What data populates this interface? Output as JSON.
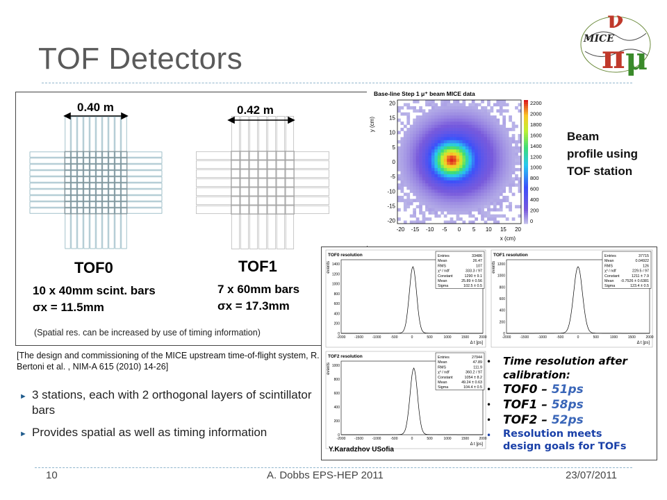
{
  "slide": {
    "title": "TOF Detectors",
    "page_number": "10",
    "footer_center": "A. Dobbs EPS-HEP 2011",
    "footer_right": "23/07/2011"
  },
  "logo": {
    "text": "MICE"
  },
  "diagram": {
    "tof0_width": "0.40 m",
    "tof1_width": "0.42 m",
    "tof0_name": "TOF0",
    "tof1_name": "TOF1",
    "tof0_bars": "10 x 40mm scint. bars",
    "tof0_sigma": "σx = 11.5mm",
    "tof1_bars": "7 x 60mm bars",
    "tof1_sigma": "σx = 17.3mm",
    "spatial_note": "(Spatial res. can be increased by use of timing information)"
  },
  "citation": "[The design and commissioning of the MICE upstream time-of-flight system, R. Bertoni et al. , NIM-A 615 (2010) 14-26]",
  "bullets": [
    "3 stations, each with 2 orthogonal layers of scintillator bars",
    "Provides spatial as well as timing information"
  ],
  "beam_profile": {
    "plot_title": "Base-line Step 1 μ⁺ beam MICE data",
    "xlabel": "x (cm)",
    "ylabel": "y (cm)",
    "x_ticks": [
      "-20",
      "-15",
      "-10",
      "-5",
      "0",
      "5",
      "10",
      "15",
      "20"
    ],
    "y_ticks": [
      "20",
      "15",
      "10",
      "5",
      "0",
      "-5",
      "-10",
      "-15",
      "-20"
    ],
    "z_ticks": [
      "2200",
      "2000",
      "1800",
      "1600",
      "1400",
      "1200",
      "1000",
      "800",
      "600",
      "400",
      "200",
      "0"
    ],
    "caption_lines": [
      "Beam",
      "profile using",
      "TOF station"
    ]
  },
  "resolution_plots": {
    "xlabel": "Δ t [ps]",
    "ylabel": "events",
    "x_ticks": [
      "-2000",
      "-1500",
      "-1000",
      "-500",
      "0",
      "500",
      "1000",
      "1500",
      "2000"
    ],
    "tof0": {
      "title": "TOF0 resolution",
      "stats": [
        [
          "Entries",
          "33486"
        ],
        [
          "Mean",
          "26.47"
        ],
        [
          "RMS",
          "107"
        ],
        [
          "χ² / ndf",
          "333.3 / 97"
        ],
        [
          "Constant",
          "1290 ± 9.1"
        ],
        [
          "Mean",
          "25.89 ± 0.56"
        ],
        [
          "Sigma",
          "102.5 ± 0.5"
        ]
      ],
      "y_ticks": [
        "1400",
        "1200",
        "1000",
        "800",
        "600",
        "400",
        "200",
        "0"
      ]
    },
    "tof1": {
      "title": "TOF1 resolution",
      "stats": [
        [
          "Entries",
          "37715"
        ],
        [
          "Mean",
          "0.04922"
        ],
        [
          "RMS",
          "126"
        ],
        [
          "χ² / ndf",
          "229.5 / 97"
        ],
        [
          "Constant",
          "1211 ± 7.9"
        ],
        [
          "Mean",
          "-0.7526 ± 0.6381"
        ],
        [
          "Sigma",
          "123.4 ± 0.5"
        ]
      ],
      "y_ticks": [
        "1200",
        "1000",
        "800",
        "600",
        "400",
        "200",
        "0"
      ]
    },
    "tof2": {
      "title": "TOF2 resolution",
      "stats": [
        [
          "Entries",
          "27944"
        ],
        [
          "Mean",
          "47.89"
        ],
        [
          "RMS",
          "111.9"
        ],
        [
          "χ² / ndf",
          "360.2 / 97"
        ],
        [
          "Constant",
          "1054 ± 8.2"
        ],
        [
          "Mean",
          "49.24 ± 0.63"
        ],
        [
          "Sigma",
          "104.4 ± 0.5"
        ]
      ],
      "y_ticks": [
        "1000",
        "800",
        "600",
        "400",
        "200",
        "0"
      ]
    },
    "author_credit": "Y.Karadzhov USofia"
  },
  "resolution_notes": {
    "heading_line1": "Time resolution after",
    "heading_line2": "calibration:",
    "items": [
      {
        "label": "TOF0 –",
        "value": "51ps"
      },
      {
        "label": "TOF1 –",
        "value": "58ps"
      },
      {
        "label": "TOF2 –",
        "value": "52ps"
      }
    ],
    "goal_line1": "Resolution meets",
    "goal_line2": "design goals for TOFs"
  },
  "colors": {
    "title": "#5a5a5a",
    "rule": "#8fb4cc",
    "resolution_value": "#3a66b8",
    "goal_text": "#1a40a8"
  }
}
